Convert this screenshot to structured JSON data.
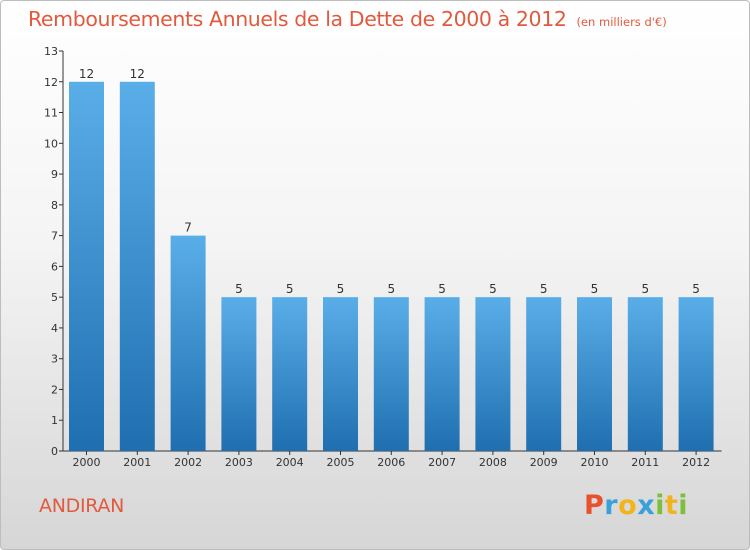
{
  "header": {
    "title": "Remboursements Annuels de la Dette de 2000 à 2012",
    "unit_note": "(en milliers d'€)"
  },
  "footer": {
    "commune": "ANDIRAN",
    "logo_letters": [
      "P",
      "r",
      "o",
      "x",
      "i",
      "t",
      "i"
    ],
    "logo_colors": [
      "#e8502e",
      "#3aa0d9",
      "#f2b41c",
      "#3aa0d9",
      "#7cbf3a",
      "#f2b41c",
      "#7cbf3a"
    ]
  },
  "colors": {
    "title": "#e25a3e",
    "bar_light": "#5aaee8",
    "bar_dark": "#1f6fb0",
    "axis": "#333333"
  },
  "chart_data": {
    "type": "bar",
    "title": "Remboursements Annuels de la Dette de 2000 à 2012",
    "subtitle": "(en milliers d'€)",
    "categories": [
      "2000",
      "2001",
      "2002",
      "2003",
      "2004",
      "2005",
      "2006",
      "2007",
      "2008",
      "2009",
      "2010",
      "2011",
      "2012"
    ],
    "values": [
      12,
      12,
      7,
      5,
      5,
      5,
      5,
      5,
      5,
      5,
      5,
      5,
      5
    ],
    "data_labels": [
      "12",
      "12",
      "7",
      "5",
      "5",
      "5",
      "5",
      "5",
      "5",
      "5",
      "5",
      "5",
      "5"
    ],
    "yticks": [
      "0",
      "1",
      "2",
      "3",
      "4",
      "5",
      "6",
      "7",
      "8",
      "9",
      "10",
      "11",
      "12",
      "13"
    ],
    "ylim": [
      0,
      13
    ],
    "grid": false,
    "legend": "none"
  }
}
